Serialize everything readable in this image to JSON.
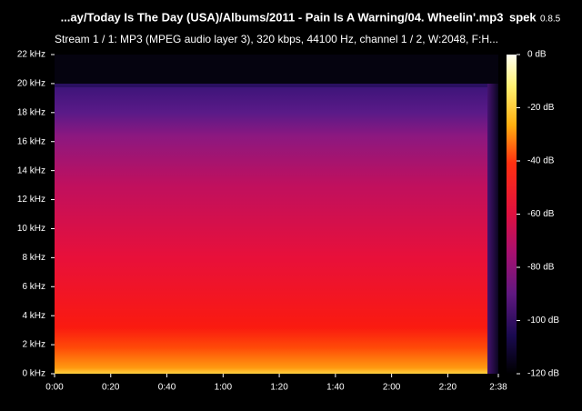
{
  "chart_data": {
    "type": "spectrogram",
    "title": "...ay/Today Is The Day (USA)/Albums/2011 - Pain Is A Warning/04. Wheelin'.mp3",
    "app": "spek",
    "version": "0.8.5",
    "subtitle": "Stream 1 / 1: MP3 (MPEG audio layer 3), 320 kbps, 44100 Hz, channel 1 / 2, W:2048, F:H...",
    "xlim": [
      0,
      158
    ],
    "xticks": [
      {
        "value": 0,
        "label": "0:00"
      },
      {
        "value": 20,
        "label": "0:20"
      },
      {
        "value": 40,
        "label": "0:40"
      },
      {
        "value": 60,
        "label": "1:00"
      },
      {
        "value": 80,
        "label": "1:20"
      },
      {
        "value": 100,
        "label": "1:40"
      },
      {
        "value": 120,
        "label": "2:00"
      },
      {
        "value": 140,
        "label": "2:20"
      },
      {
        "value": 158,
        "label": "2:38"
      }
    ],
    "ylim": [
      0,
      22
    ],
    "yticks": [
      {
        "value": 0,
        "label": "0 kHz"
      },
      {
        "value": 2,
        "label": "2 kHz"
      },
      {
        "value": 4,
        "label": "4 kHz"
      },
      {
        "value": 6,
        "label": "6 kHz"
      },
      {
        "value": 8,
        "label": "8 kHz"
      },
      {
        "value": 10,
        "label": "10 kHz"
      },
      {
        "value": 12,
        "label": "12 kHz"
      },
      {
        "value": 14,
        "label": "14 kHz"
      },
      {
        "value": 16,
        "label": "16 kHz"
      },
      {
        "value": 18,
        "label": "18 kHz"
      },
      {
        "value": 20,
        "label": "20 kHz"
      },
      {
        "value": 22,
        "label": "22 kHz"
      }
    ],
    "zlim": [
      -120,
      0
    ],
    "zticks": [
      {
        "value": 0,
        "label": "0 dB"
      },
      {
        "value": -20,
        "label": "-20 dB"
      },
      {
        "value": -40,
        "label": "-40 dB"
      },
      {
        "value": -60,
        "label": "-60 dB"
      },
      {
        "value": -80,
        "label": "-80 dB"
      },
      {
        "value": -100,
        "label": "-100 dB"
      },
      {
        "value": -120,
        "label": "-120 dB"
      }
    ]
  }
}
